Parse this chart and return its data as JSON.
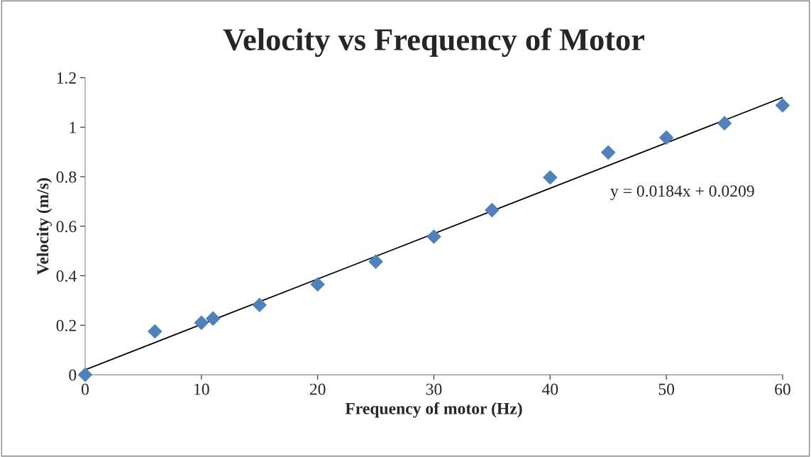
{
  "chart_data": {
    "type": "scatter",
    "title": "Velocity vs Frequency of Motor",
    "xlabel": "Frequency of motor (Hz)",
    "ylabel": "Velocity (m/s)",
    "x": [
      0,
      6,
      10,
      11,
      15,
      20,
      25,
      30,
      35,
      40,
      45,
      50,
      55,
      60
    ],
    "series": [
      {
        "color": "#4f81bd",
        "marker": "diamond",
        "values": [
          0,
          0.175,
          0.21,
          0.227,
          0.282,
          0.365,
          0.457,
          0.558,
          0.665,
          0.797,
          0.898,
          0.958,
          1.016,
          1.088
        ]
      },
      {
        "type": "line",
        "color": "#000000",
        "marker": "none",
        "line_style": "solid",
        "x": [
          0,
          60
        ],
        "values": [
          0.02,
          1.12
        ]
      }
    ],
    "annotations": [
      "y = 0.0184x + 0.0209"
    ],
    "xlim": [
      0,
      60
    ],
    "xticks": [
      0,
      10,
      20,
      30,
      40,
      50,
      60
    ],
    "ylim": [
      0,
      1.2
    ],
    "yticks": [
      0,
      0.2,
      0.4,
      0.6,
      0.8,
      1,
      1.2
    ],
    "grid": false,
    "legend": false
  }
}
